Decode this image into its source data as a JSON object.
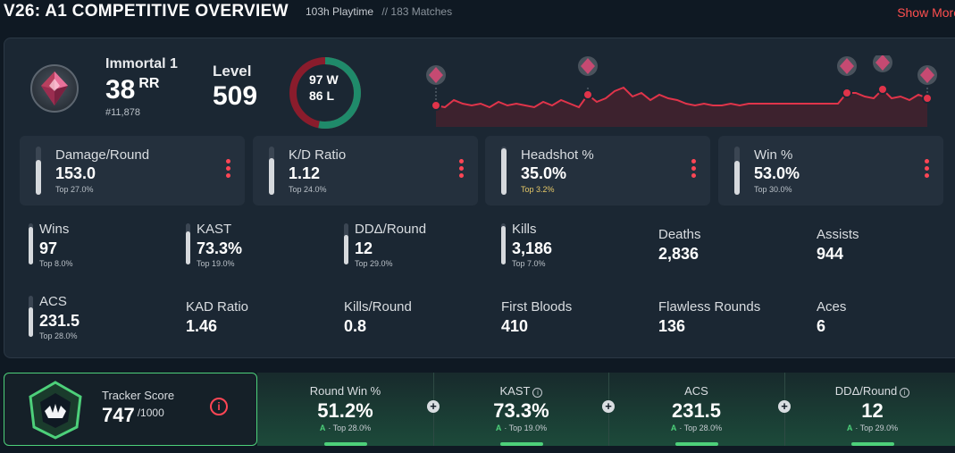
{
  "header": {
    "title": "V26: A1 COMPETITIVE OVERVIEW",
    "playtime": "103h Playtime",
    "matches": "// 183 Matches",
    "show_more": "Show More"
  },
  "rank": {
    "name": "Immortal 1",
    "rr_value": "38",
    "rr_unit": "RR",
    "position": "#11,878",
    "level_label": "Level",
    "level_value": "509"
  },
  "record": {
    "wins": "97 W",
    "losses": "86 L",
    "win_count": 97,
    "loss_count": 86
  },
  "trend": {
    "points": [
      30,
      29,
      33,
      31,
      30,
      31,
      29,
      32,
      30,
      31,
      30,
      29,
      32,
      30,
      33,
      31,
      29,
      36,
      32,
      34,
      38,
      40,
      35,
      37,
      33,
      36,
      34,
      33,
      31,
      30,
      31,
      30,
      30,
      31,
      30,
      31,
      31,
      31,
      31,
      31,
      31,
      31,
      31,
      31,
      31,
      31,
      37,
      37,
      35,
      34,
      39,
      34,
      35,
      33,
      36,
      34
    ],
    "markers": [
      0,
      17,
      46,
      50,
      55
    ],
    "colors": {
      "line": "#e0344a",
      "fill": "#5a1f2a",
      "dot": "#e0344a"
    }
  },
  "cards": [
    {
      "label": "Damage/Round",
      "value": "153.0",
      "top": "Top 27.0%",
      "fill": 0.73
    },
    {
      "label": "K/D Ratio",
      "value": "1.12",
      "top": "Top 24.0%",
      "fill": 0.76
    },
    {
      "label": "Headshot %",
      "value": "35.0%",
      "top": "Top 3.2%",
      "fill": 0.97
    },
    {
      "label": "Win %",
      "value": "53.0%",
      "top": "Top 30.0%",
      "fill": 0.7
    }
  ],
  "stats": [
    {
      "label": "Wins",
      "value": "97",
      "top": "Top 8.0%",
      "fill": 0.92
    },
    {
      "label": "KAST",
      "value": "73.3%",
      "top": "Top 19.0%",
      "fill": 0.81
    },
    {
      "label": "DDΔ/Round",
      "value": "12",
      "top": "Top 29.0%",
      "fill": 0.71
    },
    {
      "label": "Kills",
      "value": "3,186",
      "top": "Top 7.0%",
      "fill": 0.93
    },
    {
      "label": "Deaths",
      "value": "2,836"
    },
    {
      "label": "Assists",
      "value": "944"
    },
    {
      "label": "ACS",
      "value": "231.5",
      "top": "Top 28.0%",
      "fill": 0.72
    },
    {
      "label": "KAD Ratio",
      "value": "1.46"
    },
    {
      "label": "Kills/Round",
      "value": "0.8"
    },
    {
      "label": "First Bloods",
      "value": "410"
    },
    {
      "label": "Flawless Rounds",
      "value": "136"
    },
    {
      "label": "Aces",
      "value": "6"
    }
  ],
  "tracker": {
    "label": "Tracker Score",
    "score": "747",
    "max": "/1000",
    "info_icon": "info-icon"
  },
  "tracker_stats": [
    {
      "label": "Round Win %",
      "value": "51.2%",
      "grade": "A",
      "top": "· Top 28.0%",
      "has_info": false
    },
    {
      "label": "KAST",
      "value": "73.3%",
      "grade": "A",
      "top": "· Top 19.0%",
      "has_info": true
    },
    {
      "label": "ACS",
      "value": "231.5",
      "grade": "A",
      "top": "· Top 28.0%",
      "has_info": false
    },
    {
      "label": "DDΔ/Round",
      "value": "12",
      "grade": "A",
      "top": "· Top 29.0%",
      "has_info": true
    }
  ]
}
